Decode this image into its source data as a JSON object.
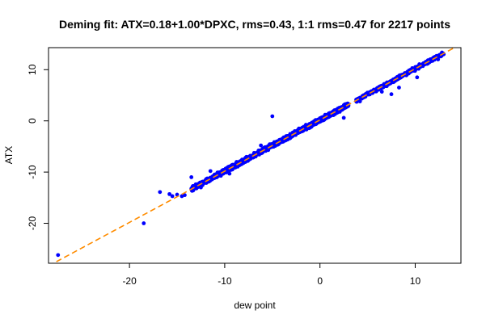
{
  "chart_data": {
    "type": "scatter",
    "title": "Deming fit: ATX=0.18+1.00*DPXC, rms=0.43, 1:1 rms=0.47 for 2217 points",
    "xlabel": "dew point",
    "ylabel": "ATX",
    "xlim": [
      -28.5,
      14.8
    ],
    "ylim": [
      -27.8,
      14.3
    ],
    "x_ticks": [
      -20,
      -10,
      0,
      10
    ],
    "y_ticks": [
      -20,
      -10,
      0,
      10
    ],
    "x_tick_labels": [
      "-20",
      "-10",
      "0",
      "10"
    ],
    "y_tick_labels": [
      "-20",
      "-10",
      "0",
      "10"
    ],
    "grid": false,
    "legend": "none",
    "point_color": "#0000ff",
    "fit_line": {
      "intercept": 0.18,
      "slope": 1.0,
      "color": "#ff8c00",
      "style": "dashed"
    },
    "point_count": 2217,
    "outlier_points": [
      [
        -27.5,
        -26.2
      ],
      [
        -18.5,
        -20.0
      ],
      [
        -16.8,
        -13.9
      ],
      [
        -15.8,
        -14.3
      ],
      [
        -15.5,
        -14.7
      ],
      [
        -15.0,
        -14.4
      ],
      [
        -14.5,
        -14.7
      ],
      [
        -14.2,
        -14.5
      ],
      [
        -13.5,
        -11.0
      ],
      [
        -12.8,
        -12.7
      ],
      [
        -12.5,
        -13.0
      ],
      [
        -5.0,
        0.9
      ],
      [
        -2.3,
        -2.3
      ],
      [
        1.2,
        1.6
      ],
      [
        2.5,
        0.6
      ],
      [
        -9.5,
        -10.3
      ],
      [
        -8.0,
        -7.8
      ],
      [
        4.2,
        3.8
      ],
      [
        6.5,
        5.7
      ],
      [
        7.5,
        5.2
      ],
      [
        8.3,
        6.5
      ],
      [
        10.2,
        8.5
      ],
      [
        12.4,
        12.0
      ],
      [
        -11.5,
        -9.8
      ],
      [
        -6.2,
        -4.8
      ]
    ],
    "dense_segments": [
      {
        "x_range": [
          -13.5,
          3.0
        ],
        "n": 1700,
        "spread": 0.55
      },
      {
        "x_range": [
          3.8,
          13.0
        ],
        "n": 490,
        "spread": 0.45
      }
    ]
  }
}
